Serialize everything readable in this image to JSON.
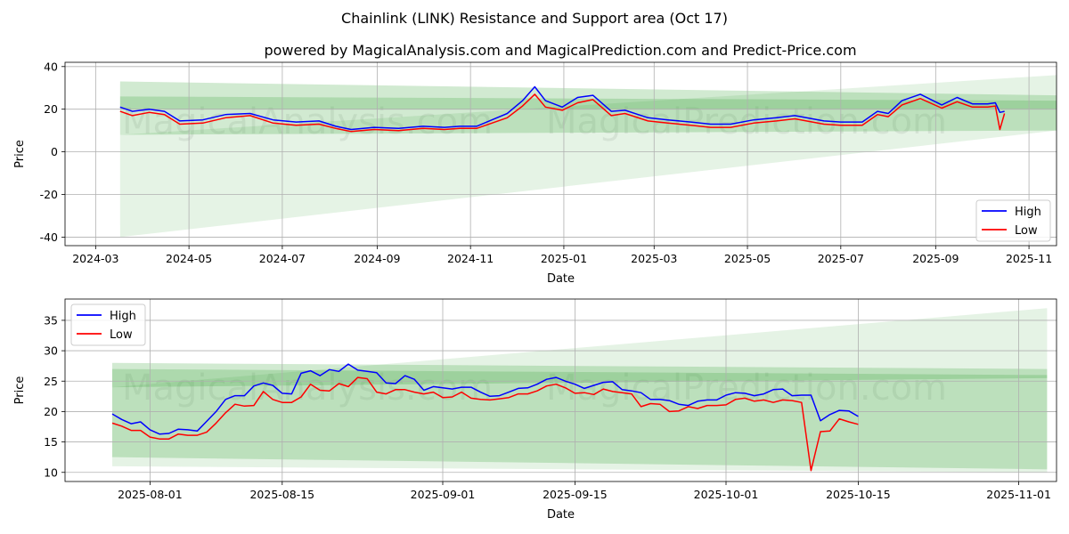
{
  "figure": {
    "title": "Chainlink (LINK) Resistance and Support area (Oct 17)",
    "subtitle": "powered by MagicalAnalysis.com and MagicalPrediction.com and Predict-Price.com",
    "watermark_left": "MagicalAnalysis.com",
    "watermark_right": "MagicalPrediction.com"
  },
  "colors": {
    "high": "#0000ff",
    "low": "#ff0000",
    "band": "#2ca02c",
    "grid": "#b0b0b0"
  },
  "chart_data": [
    {
      "type": "line",
      "xlabel": "Date",
      "ylabel": "Price",
      "grid": true,
      "legend": "bottom-right",
      "xlim": [
        "2024-02-10",
        "2025-11-19"
      ],
      "ylim": [
        -44,
        42
      ],
      "xticks": [
        {
          "date": "2024-03-01",
          "label": "2024-03"
        },
        {
          "date": "2024-05-01",
          "label": "2024-05"
        },
        {
          "date": "2024-07-01",
          "label": "2024-07"
        },
        {
          "date": "2024-09-01",
          "label": "2024-09"
        },
        {
          "date": "2024-11-01",
          "label": "2024-11"
        },
        {
          "date": "2025-01-01",
          "label": "2025-01"
        },
        {
          "date": "2025-03-01",
          "label": "2025-03"
        },
        {
          "date": "2025-05-01",
          "label": "2025-05"
        },
        {
          "date": "2025-07-01",
          "label": "2025-07"
        },
        {
          "date": "2025-09-01",
          "label": "2025-09"
        },
        {
          "date": "2025-11-01",
          "label": "2025-11"
        }
      ],
      "yticks": [
        -40,
        -20,
        0,
        20,
        40
      ],
      "bands": [
        {
          "start": "2024-03-17",
          "end": "2025-11-19",
          "top": [
            33,
            26.5
          ],
          "bottom": [
            20,
            20
          ],
          "opacity": 0.22
        },
        {
          "start": "2024-03-17",
          "end": "2025-11-19",
          "top": [
            26,
            24
          ],
          "bottom": [
            8,
            10
          ],
          "opacity": 0.22
        },
        {
          "start": "2024-03-17",
          "end": "2025-11-19",
          "top": [
            8,
            36
          ],
          "bottom": [
            -40,
            10
          ],
          "opacity": 0.12
        }
      ],
      "series": [
        {
          "name": "High",
          "x": [
            "2024-03-17",
            "2024-03-25",
            "2024-04-05",
            "2024-04-15",
            "2024-04-25",
            "2024-05-10",
            "2024-05-25",
            "2024-06-10",
            "2024-06-25",
            "2024-07-10",
            "2024-07-25",
            "2024-08-05",
            "2024-08-15",
            "2024-08-30",
            "2024-09-15",
            "2024-10-01",
            "2024-10-15",
            "2024-10-25",
            "2024-11-05",
            "2024-11-15",
            "2024-11-25",
            "2024-12-05",
            "2024-12-13",
            "2024-12-20",
            "2024-12-31",
            "2025-01-10",
            "2025-01-20",
            "2025-02-01",
            "2025-02-10",
            "2025-02-25",
            "2025-03-10",
            "2025-03-25",
            "2025-04-07",
            "2025-04-20",
            "2025-05-05",
            "2025-05-20",
            "2025-06-01",
            "2025-06-20",
            "2025-07-01",
            "2025-07-15",
            "2025-07-25",
            "2025-08-01",
            "2025-08-10",
            "2025-08-22",
            "2025-09-05",
            "2025-09-15",
            "2025-09-25",
            "2025-10-05",
            "2025-10-10",
            "2025-10-13",
            "2025-10-16"
          ],
          "values": [
            21,
            19,
            20,
            19,
            14.5,
            15,
            17.5,
            18,
            15,
            14,
            14.5,
            12,
            10.5,
            11.5,
            11,
            12,
            11.5,
            12,
            12,
            15,
            18,
            24,
            30.5,
            24,
            21,
            25.5,
            26.5,
            19,
            19.5,
            16,
            15,
            14,
            13,
            13,
            15,
            16,
            17,
            14.5,
            14,
            14,
            19,
            18,
            24,
            27,
            22,
            25.5,
            22.5,
            22.5,
            23,
            18.5,
            19
          ]
        },
        {
          "name": "Low",
          "x": [
            "2024-03-17",
            "2024-03-25",
            "2024-04-05",
            "2024-04-15",
            "2024-04-25",
            "2024-05-10",
            "2024-05-25",
            "2024-06-10",
            "2024-06-25",
            "2024-07-10",
            "2024-07-25",
            "2024-08-05",
            "2024-08-15",
            "2024-08-30",
            "2024-09-15",
            "2024-10-01",
            "2024-10-15",
            "2024-10-25",
            "2024-11-05",
            "2024-11-15",
            "2024-11-25",
            "2024-12-05",
            "2024-12-13",
            "2024-12-20",
            "2024-12-31",
            "2025-01-10",
            "2025-01-20",
            "2025-02-01",
            "2025-02-10",
            "2025-02-25",
            "2025-03-10",
            "2025-03-25",
            "2025-04-07",
            "2025-04-20",
            "2025-05-05",
            "2025-05-20",
            "2025-06-01",
            "2025-06-20",
            "2025-07-01",
            "2025-07-15",
            "2025-07-25",
            "2025-08-01",
            "2025-08-10",
            "2025-08-22",
            "2025-09-05",
            "2025-09-15",
            "2025-09-25",
            "2025-10-05",
            "2025-10-10",
            "2025-10-13",
            "2025-10-16"
          ],
          "values": [
            19,
            17,
            18.5,
            17.5,
            13,
            13.5,
            16,
            17,
            13.5,
            12.5,
            13,
            11,
            9.5,
            10.5,
            10,
            11,
            10.5,
            11,
            11,
            13.5,
            16,
            21.5,
            27,
            21,
            19.5,
            23,
            24.5,
            17,
            18,
            14.5,
            13.5,
            12.5,
            11.5,
            11.5,
            13.5,
            14.5,
            15.5,
            13,
            12.5,
            12.5,
            17.5,
            16.5,
            22,
            25,
            20.5,
            23.5,
            21,
            21,
            21.5,
            10.5,
            18
          ]
        }
      ]
    },
    {
      "type": "line",
      "xlabel": "Date",
      "ylabel": "Price",
      "grid": true,
      "legend": "top-left",
      "xlim": [
        "2025-07-23",
        "2025-11-05"
      ],
      "ylim": [
        8.5,
        38.5
      ],
      "xticks": [
        {
          "date": "2025-08-01",
          "label": "2025-08-01"
        },
        {
          "date": "2025-08-15",
          "label": "2025-08-15"
        },
        {
          "date": "2025-09-01",
          "label": "2025-09-01"
        },
        {
          "date": "2025-09-15",
          "label": "2025-09-15"
        },
        {
          "date": "2025-10-01",
          "label": "2025-10-01"
        },
        {
          "date": "2025-10-15",
          "label": "2025-10-15"
        },
        {
          "date": "2025-11-01",
          "label": "2025-11-01"
        }
      ],
      "yticks": [
        10,
        15,
        20,
        25,
        30,
        35
      ],
      "bands": [
        {
          "start": "2025-07-28",
          "end": "2025-11-04",
          "top": [
            28,
            27
          ],
          "bottom": [
            24,
            25.5
          ],
          "opacity": 0.22
        },
        {
          "start": "2025-07-28",
          "end": "2025-11-04",
          "top": [
            27,
            26
          ],
          "bottom": [
            12.5,
            10.5
          ],
          "opacity": 0.22
        },
        {
          "start": "2025-07-28",
          "end": "2025-11-04",
          "top": [
            24,
            37
          ],
          "bottom": [
            11,
            10
          ],
          "opacity": 0.12
        }
      ],
      "series": [
        {
          "name": "High",
          "x": [
            "2025-07-28",
            "2025-07-29",
            "2025-07-30",
            "2025-07-31",
            "2025-08-01",
            "2025-08-02",
            "2025-08-03",
            "2025-08-04",
            "2025-08-05",
            "2025-08-06",
            "2025-08-07",
            "2025-08-08",
            "2025-08-09",
            "2025-08-10",
            "2025-08-11",
            "2025-08-12",
            "2025-08-13",
            "2025-08-14",
            "2025-08-15",
            "2025-08-16",
            "2025-08-17",
            "2025-08-18",
            "2025-08-19",
            "2025-08-20",
            "2025-08-21",
            "2025-08-22",
            "2025-08-23",
            "2025-08-24",
            "2025-08-25",
            "2025-08-26",
            "2025-08-27",
            "2025-08-28",
            "2025-08-29",
            "2025-08-30",
            "2025-08-31",
            "2025-09-01",
            "2025-09-02",
            "2025-09-03",
            "2025-09-04",
            "2025-09-05",
            "2025-09-06",
            "2025-09-07",
            "2025-09-08",
            "2025-09-09",
            "2025-09-10",
            "2025-09-11",
            "2025-09-12",
            "2025-09-13",
            "2025-09-14",
            "2025-09-15",
            "2025-09-16",
            "2025-09-17",
            "2025-09-18",
            "2025-09-19",
            "2025-09-20",
            "2025-09-21",
            "2025-09-22",
            "2025-09-23",
            "2025-09-24",
            "2025-09-25",
            "2025-09-26",
            "2025-09-27",
            "2025-09-28",
            "2025-09-29",
            "2025-09-30",
            "2025-10-01",
            "2025-10-02",
            "2025-10-03",
            "2025-10-04",
            "2025-10-05",
            "2025-10-06",
            "2025-10-07",
            "2025-10-08",
            "2025-10-09",
            "2025-10-10",
            "2025-10-11",
            "2025-10-12",
            "2025-10-13",
            "2025-10-14",
            "2025-10-15"
          ],
          "values": [
            19.6,
            18.7,
            18.0,
            18.3,
            17.0,
            16.3,
            16.4,
            17.1,
            17.0,
            16.8,
            18.4,
            20.0,
            22.0,
            22.6,
            22.6,
            24.2,
            24.7,
            24.3,
            23.0,
            22.9,
            26.3,
            26.7,
            25.9,
            26.9,
            26.6,
            27.8,
            26.8,
            26.6,
            26.4,
            24.7,
            24.6,
            25.9,
            25.3,
            23.5,
            24.1,
            23.9,
            23.7,
            24.0,
            24.0,
            23.2,
            22.5,
            22.6,
            23.2,
            23.8,
            23.9,
            24.5,
            25.3,
            25.6,
            25.0,
            24.5,
            23.8,
            24.3,
            24.8,
            24.9,
            23.6,
            23.4,
            23.1,
            22.0,
            22.0,
            21.8,
            21.2,
            21.0,
            21.7,
            21.9,
            21.9,
            22.7,
            23.1,
            23.0,
            22.6,
            22.9,
            23.6,
            23.7,
            22.6,
            22.7,
            22.7,
            18.5,
            19.5,
            20.2,
            20.1,
            19.2
          ]
        },
        {
          "name": "Low",
          "x": [
            "2025-07-28",
            "2025-07-29",
            "2025-07-30",
            "2025-07-31",
            "2025-08-01",
            "2025-08-02",
            "2025-08-03",
            "2025-08-04",
            "2025-08-05",
            "2025-08-06",
            "2025-08-07",
            "2025-08-08",
            "2025-08-09",
            "2025-08-10",
            "2025-08-11",
            "2025-08-12",
            "2025-08-13",
            "2025-08-14",
            "2025-08-15",
            "2025-08-16",
            "2025-08-17",
            "2025-08-18",
            "2025-08-19",
            "2025-08-20",
            "2025-08-21",
            "2025-08-22",
            "2025-08-23",
            "2025-08-24",
            "2025-08-25",
            "2025-08-26",
            "2025-08-27",
            "2025-08-28",
            "2025-08-29",
            "2025-08-30",
            "2025-08-31",
            "2025-09-01",
            "2025-09-02",
            "2025-09-03",
            "2025-09-04",
            "2025-09-05",
            "2025-09-06",
            "2025-09-07",
            "2025-09-08",
            "2025-09-09",
            "2025-09-10",
            "2025-09-11",
            "2025-09-12",
            "2025-09-13",
            "2025-09-14",
            "2025-09-15",
            "2025-09-16",
            "2025-09-17",
            "2025-09-18",
            "2025-09-19",
            "2025-09-20",
            "2025-09-21",
            "2025-09-22",
            "2025-09-23",
            "2025-09-24",
            "2025-09-25",
            "2025-09-26",
            "2025-09-27",
            "2025-09-28",
            "2025-09-29",
            "2025-09-30",
            "2025-10-01",
            "2025-10-02",
            "2025-10-03",
            "2025-10-04",
            "2025-10-05",
            "2025-10-06",
            "2025-10-07",
            "2025-10-08",
            "2025-10-09",
            "2025-10-10",
            "2025-10-11",
            "2025-10-12",
            "2025-10-13",
            "2025-10-14",
            "2025-10-15"
          ],
          "values": [
            18.1,
            17.6,
            16.9,
            16.9,
            15.8,
            15.5,
            15.5,
            16.3,
            16.1,
            16.1,
            16.6,
            18.1,
            19.8,
            21.2,
            20.9,
            21.0,
            23.3,
            22.0,
            21.5,
            21.5,
            22.4,
            24.5,
            23.5,
            23.4,
            24.6,
            24.1,
            25.6,
            25.4,
            23.2,
            22.9,
            23.6,
            23.6,
            23.2,
            22.9,
            23.2,
            22.3,
            22.4,
            23.2,
            22.2,
            22.0,
            21.9,
            22.1,
            22.3,
            22.9,
            22.9,
            23.4,
            24.2,
            24.5,
            23.9,
            23.0,
            23.1,
            22.8,
            23.7,
            23.3,
            23.1,
            22.9,
            20.8,
            21.3,
            21.2,
            20.0,
            20.1,
            20.8,
            20.5,
            21.0,
            21.0,
            21.1,
            22.0,
            22.2,
            21.7,
            21.9,
            21.5,
            21.9,
            21.8,
            21.5,
            10.3,
            16.7,
            16.8,
            18.8,
            18.3,
            17.9
          ]
        }
      ]
    }
  ]
}
